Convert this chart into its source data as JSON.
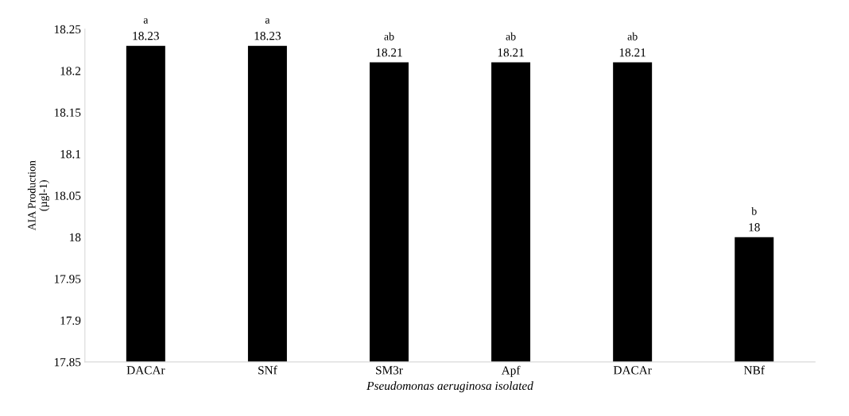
{
  "chart_data": {
    "type": "bar",
    "xlabel": "Pseudomonas aeruginosa isolated",
    "ylabel": "AIA Production\n(µgl-1)",
    "categories": [
      "DACAr",
      "SNf",
      "SM3r",
      "Apf",
      "DACAr",
      "NBf"
    ],
    "values": [
      18.23,
      18.23,
      18.21,
      18.21,
      18.21,
      18
    ],
    "color": "#000000",
    "ylim": [
      17.85,
      18.25
    ],
    "yticks": [
      17.85,
      17.9,
      17.95,
      18,
      18.05,
      18.1,
      18.15,
      18.2,
      18.25
    ],
    "data_labels": true,
    "grid": false,
    "legend": false,
    "annotations": [
      "a",
      "a",
      "ab",
      "ab",
      "ab",
      "b"
    ]
  }
}
